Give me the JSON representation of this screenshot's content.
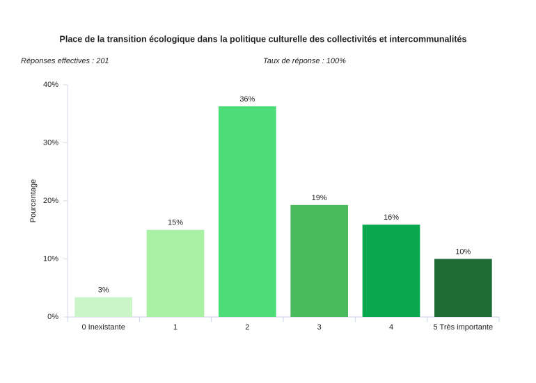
{
  "chart_data": {
    "type": "bar",
    "title": "Place de la transition écologique dans la politique culturelle des collectivités et intercommunalités",
    "subtitle_left": "Réponses effectives : 201",
    "subtitle_right": "Taux de réponse : 100%",
    "y_label": "Pourcentage",
    "categories": [
      "0 Inexistante",
      "1",
      "2",
      "3",
      "4",
      "5 Très importante"
    ],
    "values": [
      3.4,
      15,
      36.3,
      19.3,
      15.9,
      10
    ],
    "value_labels": [
      "3%",
      "15%",
      "36%",
      "19%",
      "16%",
      "10%"
    ],
    "colors": [
      "#c9f5c9",
      "#a8f0a4",
      "#4cdc78",
      "#4aba5c",
      "#0aa84e",
      "#1e6b35"
    ],
    "ylim": [
      0,
      40
    ],
    "yticks": [
      {
        "value": 0,
        "label": "0%"
      },
      {
        "value": 10,
        "label": "10%"
      },
      {
        "value": 20,
        "label": "20%"
      },
      {
        "value": 30,
        "label": "30%"
      },
      {
        "value": 40,
        "label": "40%"
      }
    ],
    "grid": false
  }
}
